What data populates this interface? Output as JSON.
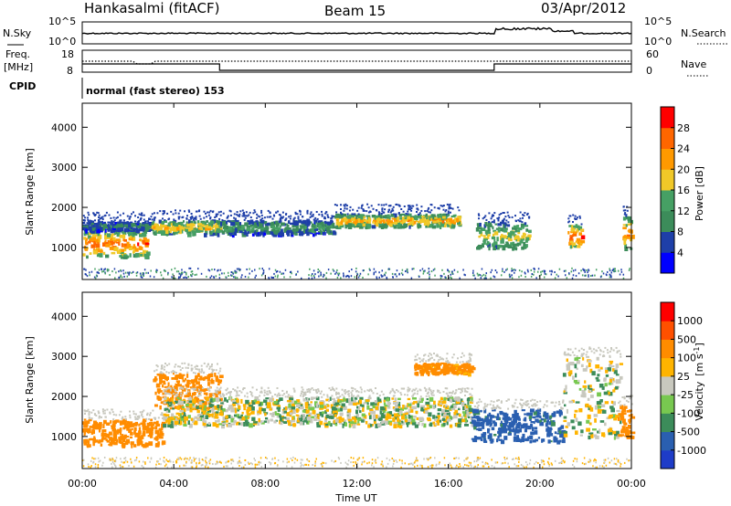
{
  "header": {
    "station": "Hankasalmi (fitACF)",
    "beam": "Beam 15",
    "date": "03/Apr/2012"
  },
  "aux_panels": {
    "nsky_label": "N.Sky",
    "nsky_ticks": [
      "10^5",
      "10^0"
    ],
    "nsearch_label": "N.Search",
    "nsearch_ticks": [
      "10^5",
      "10^0"
    ],
    "freq_label_1": "Freq.",
    "freq_label_2": "[MHz]",
    "freq_ticks": [
      "18",
      "8"
    ],
    "nave_label": "Nave",
    "nave_ticks": [
      "60",
      "0"
    ],
    "cpid_label": "CPID",
    "cpid_text": "normal (fast stereo) 153"
  },
  "chart_data": [
    {
      "type": "heatmap",
      "name": "power",
      "ylabel": "Slant Range [km]",
      "xlabel": "",
      "x_ticks": [
        "00:00",
        "04:00",
        "08:00",
        "12:00",
        "16:00",
        "20:00",
        "00:00"
      ],
      "y_ticks": [
        "1000",
        "2000",
        "3000",
        "4000"
      ],
      "ylim": [
        200,
        4600
      ],
      "xlim_hours": [
        0,
        24
      ],
      "colorbar_label": "Power [dB]",
      "colorbar_ticks": [
        "4",
        "8",
        "12",
        "16",
        "20",
        "24",
        "28"
      ],
      "colorbar_colors": [
        "#0000ff",
        "#1e3fa8",
        "#3c8c5a",
        "#46a064",
        "#f0c828",
        "#ff9900",
        "#ff6600",
        "#ff0000"
      ],
      "bands": [
        {
          "t0": 0.0,
          "t1": 2.8,
          "r0": 800,
          "r1": 1450,
          "level": 26
        },
        {
          "t0": 0.0,
          "t1": 3.0,
          "r0": 1450,
          "r1": 1650,
          "level": 10
        },
        {
          "t0": 3.0,
          "t1": 6.0,
          "r0": 1350,
          "r1": 1700,
          "level": 20
        },
        {
          "t0": 6.0,
          "t1": 11.0,
          "r0": 1350,
          "r1": 1700,
          "level": 12
        },
        {
          "t0": 11.0,
          "t1": 16.5,
          "r0": 1550,
          "r1": 1850,
          "level": 22
        },
        {
          "t0": 17.2,
          "t1": 19.5,
          "r0": 1000,
          "r1": 1650,
          "level": 18
        },
        {
          "t0": 21.2,
          "t1": 21.8,
          "r0": 1000,
          "r1": 1600,
          "level": 28
        },
        {
          "t0": 23.6,
          "t1": 24.0,
          "r0": 1000,
          "r1": 1800,
          "level": 24
        }
      ]
    },
    {
      "type": "heatmap",
      "name": "velocity",
      "ylabel": "Slant Range [km]",
      "xlabel": "Time UT",
      "x_ticks": [
        "00:00",
        "04:00",
        "08:00",
        "12:00",
        "16:00",
        "20:00",
        "00:00"
      ],
      "y_ticks": [
        "1000",
        "2000",
        "3000",
        "4000"
      ],
      "ylim": [
        200,
        4600
      ],
      "xlim_hours": [
        0,
        24
      ],
      "colorbar_label": "Velocity",
      "colorbar_label_unit": "[m s",
      "colorbar_label_exp": "-1",
      "colorbar_label_close": "]",
      "colorbar_ticks": [
        "1000",
        "500",
        "100",
        "25",
        "-25",
        "-100",
        "-500",
        "-1000"
      ],
      "colorbar_colors": [
        "#1e3cc8",
        "#2a5fb0",
        "#3c8c5a",
        "#78c850",
        "#c8c8be",
        "#ffb400",
        "#ff8c00",
        "#ff5000",
        "#ff0000"
      ],
      "bands": [
        {
          "t0": 0.0,
          "t1": 3.5,
          "r0": 800,
          "r1": 1450,
          "v": -200
        },
        {
          "t0": 3.0,
          "t1": 6.0,
          "r0": 1700,
          "r1": 2600,
          "v": -300
        },
        {
          "t0": 3.5,
          "t1": 17.0,
          "r0": 1300,
          "r1": 2000,
          "v": 0
        },
        {
          "t0": 14.5,
          "t1": 17.0,
          "r0": 2600,
          "r1": 2850,
          "v": -150
        },
        {
          "t0": 17.0,
          "t1": 21.0,
          "r0": 900,
          "r1": 1700,
          "v": 150
        },
        {
          "t0": 21.0,
          "t1": 23.5,
          "r0": 1000,
          "r1": 3000,
          "v": 0
        },
        {
          "t0": 23.4,
          "t1": 24.0,
          "r0": 1000,
          "r1": 1800,
          "v": -250
        }
      ]
    }
  ]
}
